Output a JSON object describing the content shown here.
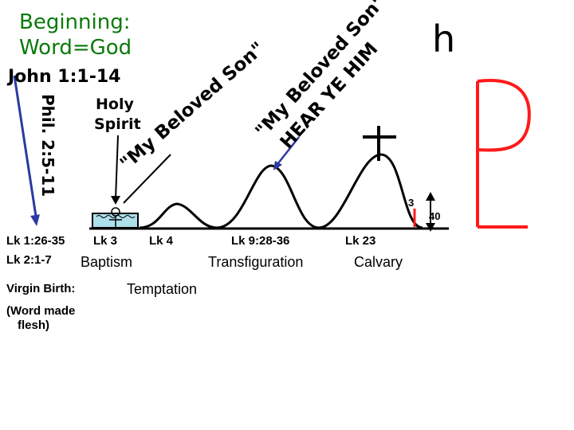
{
  "title": {
    "line1": "Beginning:",
    "line2": "Word=God"
  },
  "john_ref": "John 1:1-14",
  "phil_ref": "Phil. 2:5-11",
  "holy_spirit": {
    "line1": "Holy",
    "line2": "Spirit"
  },
  "beloved_son_1": "\"My Beloved Son\"",
  "beloved_son_2": {
    "line1": "\"My Beloved Son\"",
    "line2": "HEAR YE HIM"
  },
  "letter_h": "h",
  "num_3": "3",
  "num_40": "40",
  "events": {
    "lk1_26": "Lk 1:26-35",
    "lk2_1": "Lk 2:1-7",
    "lk3": "Lk 3",
    "baptism": "Baptism",
    "lk4": "Lk 4",
    "temptation": "Temptation",
    "lk9": "Lk 9:28-36",
    "transfiguration": "Transfiguration",
    "lk23": "Lk 23",
    "calvary": "Calvary",
    "virgin_birth": "Virgin Birth:",
    "word_made_flesh": {
      "line1": "(Word made",
      "line2": "flesh)"
    }
  },
  "colors": {
    "title_green": "#0a7a0a",
    "red": "#ff1a1a",
    "arrow_blue": "#2a3aa0",
    "water": "#aee0ec",
    "black": "#000000"
  }
}
